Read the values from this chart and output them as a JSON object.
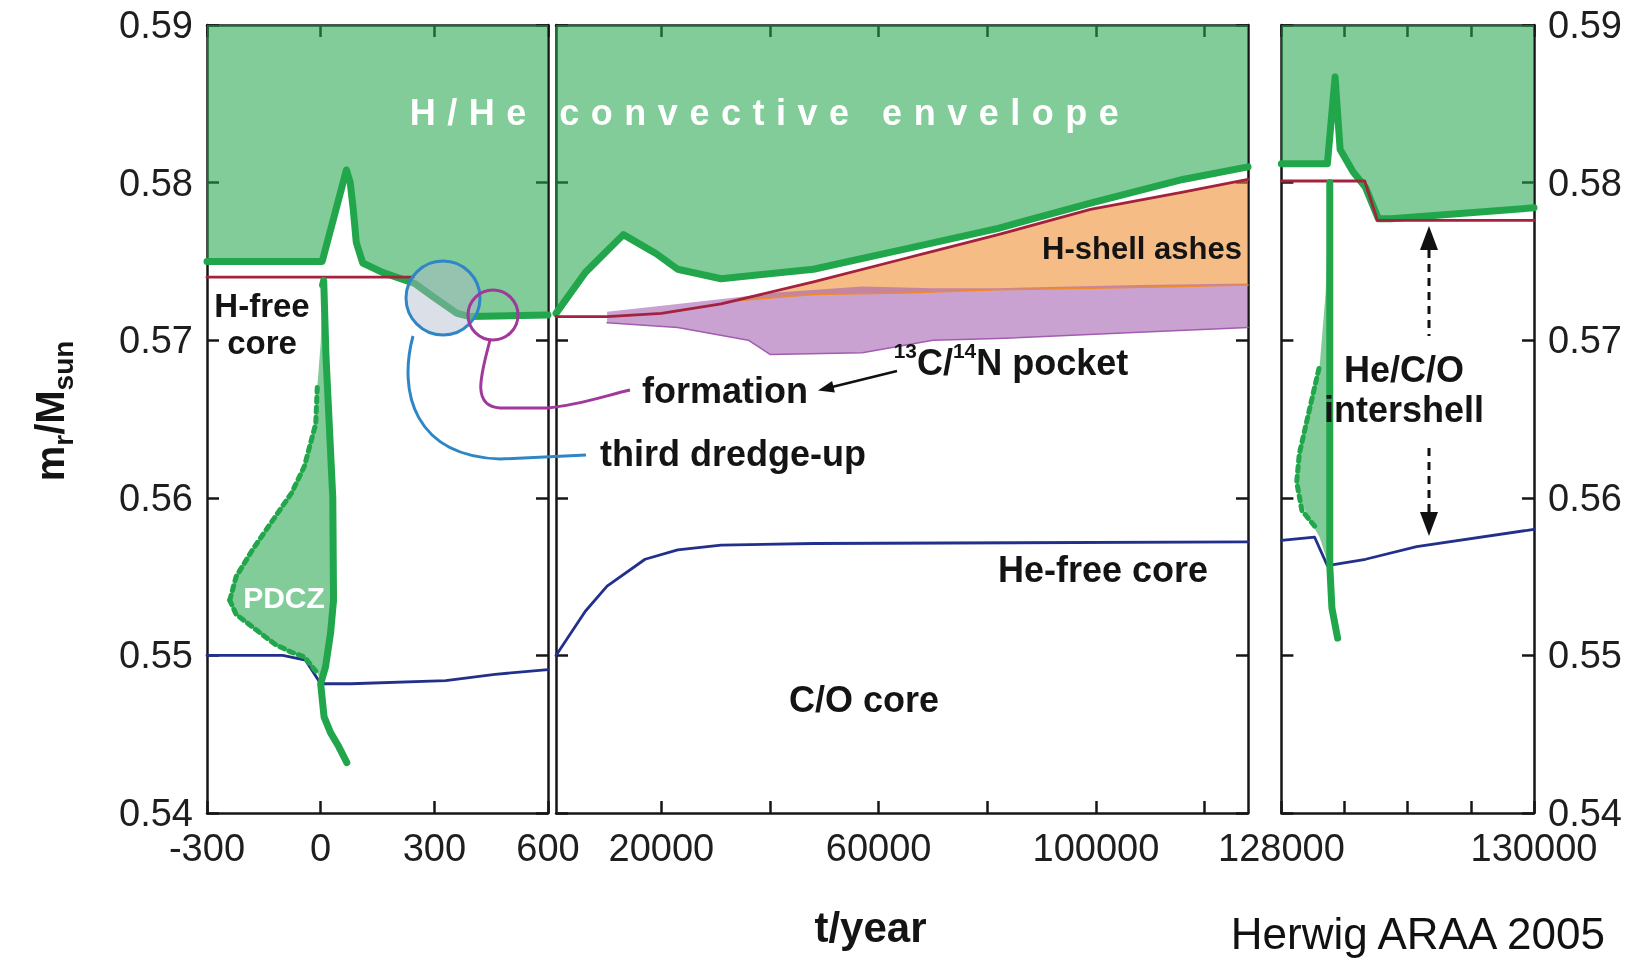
{
  "chart_data": [
    {
      "type": "line",
      "ylabel": "m$_{r}$/M$_{sun}$",
      "xlim": [
        -300,
        600
      ],
      "xticks": [
        -300,
        0,
        300,
        600
      ],
      "ylim": [
        0.54,
        0.59
      ],
      "yticks": [
        0.54,
        0.55,
        0.56,
        0.57,
        0.58,
        0.59
      ],
      "series": [
        {
          "x": [
            -300,
            0,
            4,
            68,
            78,
            86,
            94,
            111,
            163,
            248,
            300,
            360,
            394,
            600
          ],
          "values": [
            0.575,
            0.575,
            0.575,
            0.5808,
            0.58,
            0.5783,
            0.5762,
            0.5749,
            0.5743,
            0.5736,
            0.5727,
            0.5717,
            0.5715,
            0.5716
          ],
          "lower": [
            0.575,
            0.575,
            0.575,
            0.5808,
            0.58,
            0.5783,
            0.5762,
            0.5749,
            0.5743,
            0.5736,
            0.5727,
            0.5717,
            0.5715,
            0.5716
          ],
          "upper": [
            0.59,
            0.59,
            0.59,
            0.59,
            0.59,
            0.59,
            0.59,
            0.59,
            0.59,
            0.59,
            0.59,
            0.59,
            0.59,
            0.59
          ],
          "color": "#21a64b"
        },
        {
          "x": [
            -300,
            245
          ],
          "values": [
            0.574,
            0.574
          ],
          "color": "#a3223e"
        },
        {
          "x": [
            -300,
            -100,
            -40,
            0,
            80,
            330,
            460,
            600
          ],
          "values": [
            0.55,
            0.55,
            0.5497,
            0.5482,
            0.5482,
            0.5484,
            0.5488,
            0.5491
          ],
          "color": "#22308c"
        },
        {
          "x": [
            -240,
            -223,
            -180,
            -120,
            -77,
            -43,
            -13,
            -9,
            0,
            5,
            8,
            14,
            22,
            32,
            34
          ],
          "values": [
            0.5535,
            0.555,
            0.5567,
            0.5588,
            0.5603,
            0.562,
            0.5647,
            0.567,
            null,
            null,
            null,
            null,
            null,
            null,
            null
          ],
          "lower": [
            0.5535,
            0.5526,
            0.5518,
            0.5507,
            0.5502,
            0.5499,
            0.549,
            0.5489,
            0.5484,
            0.5486,
            0.5488,
            0.5494,
            0.5507,
            0.5528,
            0.5535
          ],
          "upper": [
            0.5535,
            0.555,
            0.5567,
            0.5588,
            0.5603,
            0.562,
            0.5647,
            0.567,
            0.5698,
            0.5735,
            0.5738,
            0.569,
            0.565,
            0.56,
            0.5535
          ],
          "color": "#21a64b",
          "line_style": "dotted"
        },
        {
          "x": [
            -240,
            -223,
            -180,
            -120,
            -77,
            -43,
            -13
          ],
          "values": [
            0.5535,
            0.5526,
            0.5518,
            0.5507,
            0.5502,
            0.5499,
            0.549
          ],
          "color": "#21a64b",
          "line_style": "dotted"
        },
        {
          "x": [
            5,
            8,
            14,
            22,
            32,
            34,
            26,
            13,
            0,
            9,
            26,
            48,
            69
          ],
          "values": [
            0.5735,
            0.5738,
            0.569,
            0.565,
            0.56,
            0.5535,
            0.5514,
            0.5493,
            0.5482,
            0.5461,
            0.5451,
            0.5442,
            0.5432
          ],
          "color": "#21a64b"
        }
      ],
      "annotations": [
        "H-free\ncore",
        "PDCZ"
      ]
    },
    {
      "type": "line",
      "xlabel": "t/year",
      "xlim": [
        600,
        128000
      ],
      "xticks": [
        20000,
        {
          "value": 40000,
          "label": null
        },
        60000,
        {
          "value": 80000,
          "label": null
        },
        100000,
        {
          "value": 120000,
          "label": null
        }
      ],
      "ylim": [
        0.54,
        0.59
      ],
      "yticks": [
        0.54,
        0.55,
        0.56,
        0.57,
        0.58,
        0.59
      ],
      "tick_labels": "x",
      "series": [
        {
          "x": [
            34000,
            48000,
            65000,
            82000,
            99000,
            116000,
            128000
          ],
          "values": [
            0.5725,
            0.5729,
            0.573,
            0.5732,
            0.5733,
            0.5734,
            0.5735
          ],
          "lower": [
            0.5725,
            0.5729,
            0.573,
            0.5732,
            0.5733,
            0.5734,
            0.5735
          ],
          "upper": [
            0.5725,
            0.5737,
            0.5752,
            0.5767,
            0.5783,
            0.5794,
            0.5802
          ],
          "color": "#f08a2a"
        },
        {
          "x": [
            10000,
            23000,
            36000,
            40000,
            57000,
            70000,
            82000,
            108000,
            128000
          ],
          "values": [
            0.5711,
            0.5708,
            0.57,
            0.5691,
            0.5692,
            0.57,
            0.5701,
            0.5705,
            0.5708
          ],
          "lower": [
            0.5711,
            0.5708,
            0.57,
            0.5691,
            0.5692,
            0.57,
            0.5701,
            0.5705,
            0.5708
          ],
          "upper": [
            0.5718,
            0.5723,
            0.5728,
            0.573,
            0.5734,
            0.5733,
            0.5733,
            0.5735,
            0.5736
          ],
          "color": "#a15cb0"
        },
        {
          "x": [
            600,
            6000,
            13000,
            19000,
            23000,
            31000,
            48000,
            65000,
            82000,
            99000,
            116000,
            128000
          ],
          "values": [
            0.5717,
            0.5743,
            0.5767,
            0.5755,
            0.5745,
            0.5739,
            0.5745,
            0.5758,
            0.5771,
            0.5787,
            0.5802,
            0.581
          ],
          "lower": [
            0.5717,
            0.5743,
            0.5767,
            0.5755,
            0.5745,
            0.5739,
            0.5745,
            0.5758,
            0.5771,
            0.5787,
            0.5802,
            0.581
          ],
          "upper": [
            0.59,
            0.59,
            0.59,
            0.59,
            0.59,
            0.59,
            0.59,
            0.59,
            0.59,
            0.59,
            0.59,
            0.59
          ],
          "color": "#21a64b"
        },
        {
          "x": [
            600,
            10000,
            20000,
            31000,
            48000,
            65000,
            82000,
            99000,
            116000,
            128000
          ],
          "values": [
            0.5715,
            0.5715,
            0.5717,
            0.5723,
            0.5737,
            0.5752,
            0.5767,
            0.5783,
            0.5794,
            0.5802
          ],
          "color": "#a3223e"
        },
        {
          "x": [
            600,
            6000,
            10000,
            17000,
            23000,
            31000,
            48000,
            128000
          ],
          "values": [
            0.55,
            0.5528,
            0.5544,
            0.5561,
            0.5567,
            0.557,
            0.5571,
            0.5572
          ],
          "color": "#22308c"
        }
      ],
      "annotations": [
        "H/He convective envelope",
        "formation",
        "third dredge-up",
        "$^{13}$C/$^{14}$N pocket",
        "H-shell ashes",
        "He-free core",
        "C/O core"
      ]
    },
    {
      "type": "line",
      "xlim": [
        128000,
        130000
      ],
      "xticks": [
        128000,
        {
          "value": 128500,
          "label": null
        },
        {
          "value": 129000,
          "label": null
        },
        {
          "value": 129500,
          "label": null
        },
        130000
      ],
      "y2lim": [
        0.54,
        0.59
      ],
      "y2ticks": [
        0.54,
        0.55,
        0.56,
        0.57,
        0.58,
        0.59
      ],
      "series": [
        {
          "x": [
            128000,
            128364,
            128425,
            128465,
            128566,
            128666,
            128768,
            128869,
            130000
          ],
          "values": [
            0.5812,
            0.5812,
            0.5867,
            0.5821,
            0.5807,
            0.5797,
            0.5777,
            0.5777,
            0.5784
          ],
          "lower": [
            0.5812,
            0.5812,
            0.5867,
            0.5821,
            0.5807,
            0.5797,
            0.5777,
            0.5777,
            0.5784
          ],
          "upper": [
            0.59,
            0.59,
            0.59,
            0.59,
            0.59,
            0.59,
            0.59,
            0.59,
            0.59
          ],
          "color": "#21a64b",
          "axis": "y2"
        },
        {
          "x": [
            128000,
            128660,
            128760,
            130000
          ],
          "values": [
            0.5801,
            0.5801,
            0.5776,
            0.5776
          ],
          "color": "#a3223e",
          "axis": "y2"
        },
        {
          "x": [
            128000,
            128263,
            128364,
            128666,
            129071,
            130000
          ],
          "values": [
            0.5573,
            0.5575,
            0.5557,
            0.5561,
            0.5569,
            0.558
          ],
          "color": "#22308c",
          "axis": "y2"
        },
        {
          "x": [
            128263,
            128162,
            128121,
            128142,
            128222,
            128303,
            128350,
            128383
          ],
          "values": [
            0.5582,
            0.5592,
            0.561,
            0.5628,
            0.5656,
            0.5684,
            null,
            null
          ],
          "lower": [
            null,
            null,
            0.561,
            0.56,
            0.5586,
            0.5575,
            0.5563,
            0.5557
          ],
          "upper": [
            null,
            null,
            0.561,
            0.5628,
            0.5656,
            0.5684,
            0.573,
            0.58
          ],
          "color": "#21a64b",
          "line_style": "dotted",
          "axis": "y2"
        },
        {
          "x": [
            128383,
            128383,
            128400,
            128445
          ],
          "values": [
            0.58,
            0.5557,
            0.553,
            0.5511
          ],
          "color": "#21a64b",
          "axis": "y2"
        }
      ],
      "annotations": [
        "He/C/O\nintershell",
        "Herwig ARAA 2005"
      ]
    }
  ]
}
